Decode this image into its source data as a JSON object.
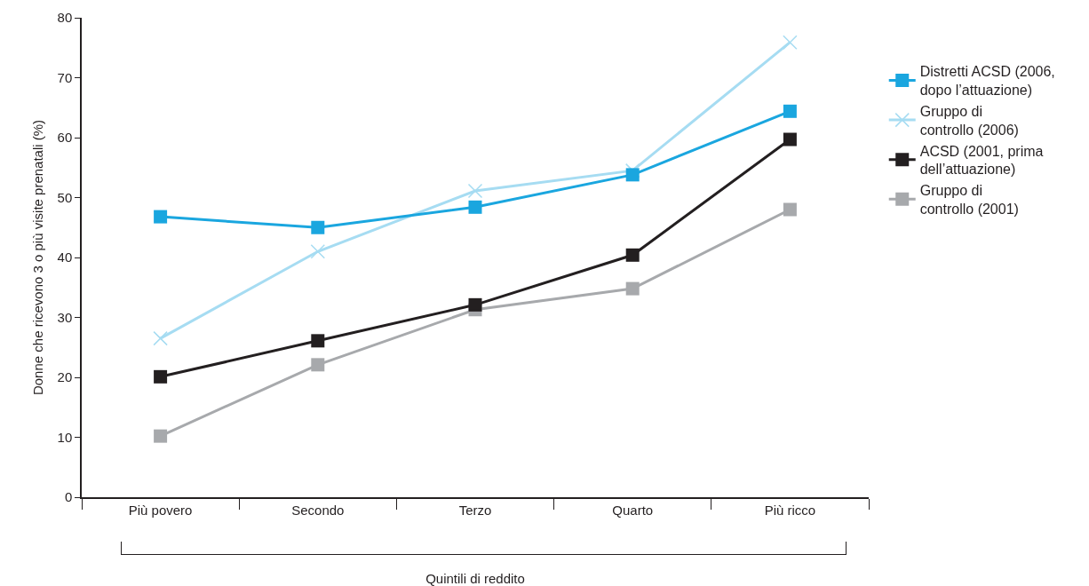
{
  "chart_data": {
    "type": "line",
    "xlabel": "Quintili di reddito",
    "ylabel": "Donne che ricevono 3 o più visite prenatali (%)",
    "categories": [
      "Più povero",
      "Secondo",
      "Terzo",
      "Quarto",
      "Più ricco"
    ],
    "series": [
      {
        "name": "Distretti ACSD (2006,\ndopo l’attuazione)",
        "color": "#1aa6df",
        "marker": "square",
        "values": [
          46.8,
          45.0,
          48.4,
          53.8,
          64.4
        ]
      },
      {
        "name": "Gruppo di\ncontrollo (2006)",
        "color": "#a6dcf2",
        "marker": "cross",
        "values": [
          26.5,
          41.0,
          51.1,
          54.5,
          75.9
        ]
      },
      {
        "name": "ACSD (2001, prima\ndell’attuazione)",
        "color": "#231f20",
        "marker": "square",
        "values": [
          20.1,
          26.1,
          32.1,
          40.4,
          59.7
        ]
      },
      {
        "name": "Gruppo di\ncontrollo (2001)",
        "color": "#a7a9ac",
        "marker": "square",
        "values": [
          10.2,
          22.1,
          31.3,
          34.8,
          48.0
        ]
      }
    ],
    "ylim": [
      0,
      80
    ],
    "yticks": [
      0,
      10,
      20,
      30,
      40,
      50,
      60,
      70,
      80
    ],
    "grid": false,
    "legend": "right",
    "line_style": "solid"
  }
}
